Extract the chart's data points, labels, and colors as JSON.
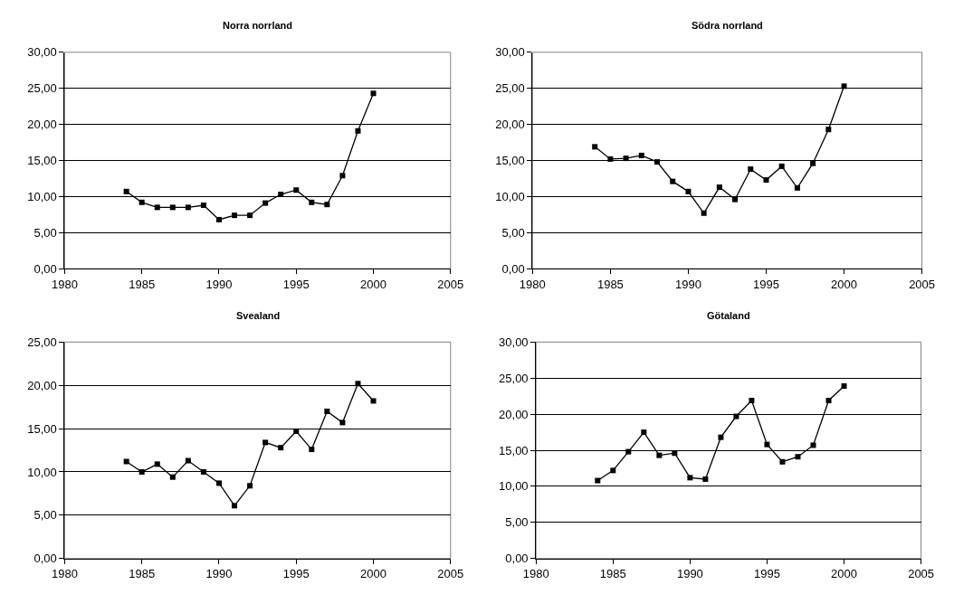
{
  "chart_data": [
    {
      "type": "line",
      "title": "Norra norrland",
      "x": [
        1984,
        1985,
        1986,
        1987,
        1988,
        1989,
        1990,
        1991,
        1992,
        1993,
        1994,
        1995,
        1996,
        1997,
        1998,
        1999,
        2000
      ],
      "series": [
        {
          "color": "#000000",
          "values": [
            10.7,
            9.2,
            8.5,
            8.5,
            8.5,
            8.8,
            6.8,
            7.4,
            7.4,
            9.1,
            10.3,
            10.9,
            9.2,
            8.9,
            12.9,
            19.1,
            24.3
          ]
        }
      ],
      "xlim": [
        1980,
        2005
      ],
      "xticks": [
        1980,
        1985,
        1990,
        1995,
        2000,
        2005
      ],
      "ylim": [
        0,
        30
      ],
      "yticks": [
        {
          "value": 0,
          "label": "0,00"
        },
        {
          "value": 5,
          "label": "5,00"
        },
        {
          "value": 10,
          "label": "10,00"
        },
        {
          "value": 15,
          "label": "15,00"
        },
        {
          "value": 20,
          "label": "20,00"
        },
        {
          "value": 25,
          "label": "25,00"
        },
        {
          "value": 30,
          "label": "30,00"
        }
      ],
      "grid": "y",
      "marker": "square",
      "line_style": "solid"
    },
    {
      "type": "line",
      "title": "Södra norrland",
      "x": [
        1984,
        1985,
        1986,
        1987,
        1988,
        1989,
        1990,
        1991,
        1992,
        1993,
        1994,
        1995,
        1996,
        1997,
        1998,
        1999,
        2000
      ],
      "series": [
        {
          "color": "#000000",
          "values": [
            16.9,
            15.2,
            15.3,
            15.7,
            14.8,
            12.1,
            10.7,
            7.7,
            11.3,
            9.6,
            13.8,
            12.3,
            14.2,
            11.2,
            14.6,
            19.3,
            25.3
          ]
        }
      ],
      "xlim": [
        1980,
        2005
      ],
      "xticks": [
        1980,
        1985,
        1990,
        1995,
        2000,
        2005
      ],
      "ylim": [
        0,
        30
      ],
      "yticks": [
        {
          "value": 0,
          "label": "0,00"
        },
        {
          "value": 5,
          "label": "5,00"
        },
        {
          "value": 10,
          "label": "10,00"
        },
        {
          "value": 15,
          "label": "15,00"
        },
        {
          "value": 20,
          "label": "20,00"
        },
        {
          "value": 25,
          "label": "25,00"
        },
        {
          "value": 30,
          "label": "30,00"
        }
      ],
      "grid": "y",
      "marker": "square",
      "line_style": "solid"
    },
    {
      "type": "line",
      "title": "Svealand",
      "x": [
        1984,
        1985,
        1986,
        1987,
        1988,
        1989,
        1990,
        1991,
        1992,
        1993,
        1994,
        1995,
        1996,
        1997,
        1998,
        1999,
        2000
      ],
      "series": [
        {
          "color": "#000000",
          "values": [
            11.2,
            10.0,
            10.9,
            9.4,
            11.3,
            10.0,
            8.7,
            6.1,
            8.4,
            13.4,
            12.8,
            14.7,
            12.6,
            17.0,
            15.7,
            20.2,
            18.2
          ]
        }
      ],
      "xlim": [
        1980,
        2005
      ],
      "xticks": [
        1980,
        1985,
        1990,
        1995,
        2000,
        2005
      ],
      "ylim": [
        0,
        25
      ],
      "yticks": [
        {
          "value": 0,
          "label": "0,00"
        },
        {
          "value": 5,
          "label": "5,00"
        },
        {
          "value": 10,
          "label": "10,00"
        },
        {
          "value": 15,
          "label": "15,00"
        },
        {
          "value": 20,
          "label": "20,00"
        },
        {
          "value": 25,
          "label": "25,00"
        }
      ],
      "grid": "y",
      "marker": "square",
      "line_style": "solid"
    },
    {
      "type": "line",
      "title": "Götaland",
      "x": [
        1984,
        1985,
        1986,
        1987,
        1988,
        1989,
        1990,
        1991,
        1992,
        1993,
        1994,
        1995,
        1996,
        1997,
        1998,
        1999,
        2000
      ],
      "series": [
        {
          "color": "#000000",
          "values": [
            10.8,
            12.2,
            14.8,
            17.5,
            14.3,
            14.6,
            11.2,
            11.0,
            16.8,
            19.7,
            21.9,
            15.8,
            13.4,
            14.1,
            15.7,
            21.9,
            23.9
          ]
        }
      ],
      "xlim": [
        1980,
        2005
      ],
      "xticks": [
        1980,
        1985,
        1990,
        1995,
        2000,
        2005
      ],
      "ylim": [
        0,
        30
      ],
      "yticks": [
        {
          "value": 0,
          "label": "0,00"
        },
        {
          "value": 5,
          "label": "5,00"
        },
        {
          "value": 10,
          "label": "10,00"
        },
        {
          "value": 15,
          "label": "15,00"
        },
        {
          "value": 20,
          "label": "20,00"
        },
        {
          "value": 25,
          "label": "25,00"
        },
        {
          "value": 30,
          "label": "30,00"
        }
      ],
      "grid": "y",
      "marker": "square",
      "line_style": "solid"
    }
  ]
}
